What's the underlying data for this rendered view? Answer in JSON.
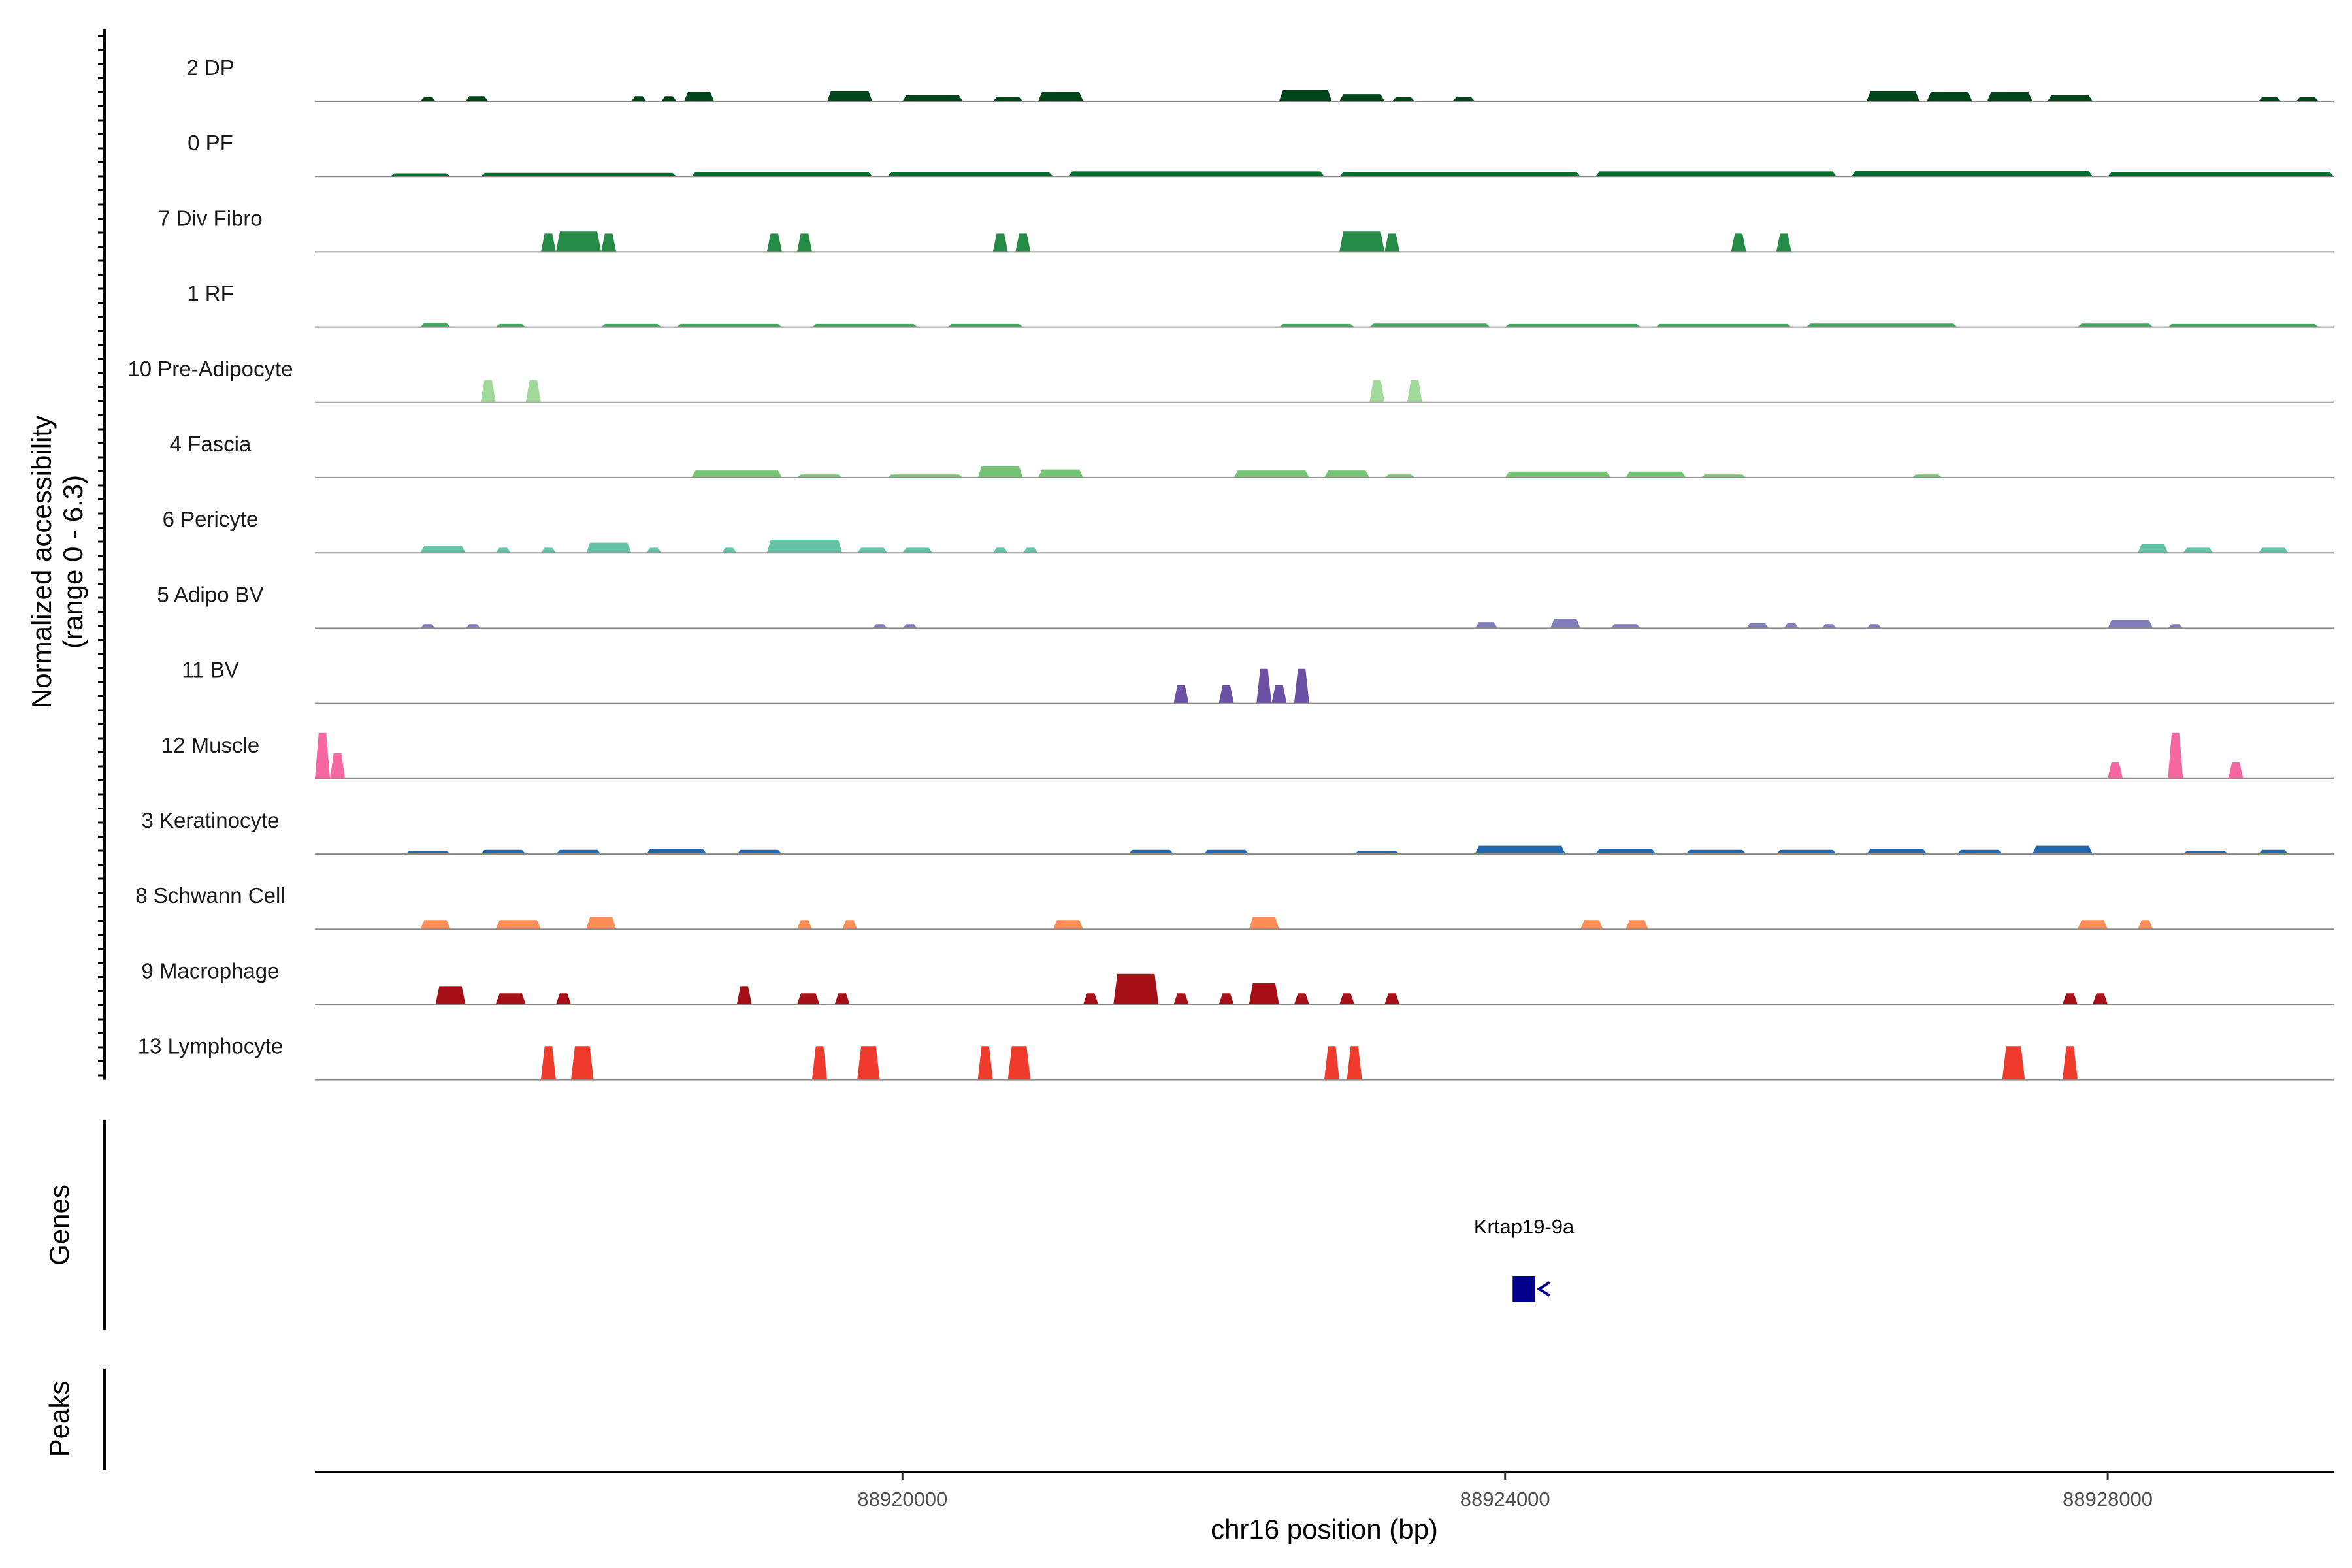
{
  "chart_data": {
    "type": "area",
    "ylabel": "Normalized accessibility\n(range 0 - 6.3)",
    "xlabel": "chr16 position (bp)",
    "xlim": [
      88916100,
      88929500
    ],
    "ylim": [
      0,
      6.3
    ],
    "x_ticks": [
      {
        "value": 88920000,
        "label": "88920000"
      },
      {
        "value": 88924000,
        "label": "88924000"
      },
      {
        "value": 88928000,
        "label": "88928000"
      }
    ],
    "tracks": [
      {
        "name": "2 DP",
        "color": "#00441b",
        "peaks": [
          [
            88916800,
            88916900,
            0.4
          ],
          [
            88917100,
            88917250,
            0.5
          ],
          [
            88918200,
            88918300,
            0.5
          ],
          [
            88918400,
            88918500,
            0.5
          ],
          [
            88918550,
            88918750,
            0.9
          ],
          [
            88919500,
            88919800,
            1.0
          ],
          [
            88920000,
            88920400,
            0.6
          ],
          [
            88920600,
            88920800,
            0.4
          ],
          [
            88920900,
            88921200,
            0.9
          ],
          [
            88922500,
            88922850,
            1.1
          ],
          [
            88922900,
            88923200,
            0.7
          ],
          [
            88923250,
            88923400,
            0.4
          ],
          [
            88923650,
            88923800,
            0.4
          ],
          [
            88926400,
            88926750,
            1.0
          ],
          [
            88926800,
            88927100,
            0.9
          ],
          [
            88927200,
            88927500,
            0.9
          ],
          [
            88927600,
            88927900,
            0.6
          ],
          [
            88929000,
            88929150,
            0.4
          ],
          [
            88929250,
            88929400,
            0.4
          ]
        ]
      },
      {
        "name": "0 PF",
        "color": "#006d2c",
        "peaks": [
          [
            88916600,
            88917000,
            0.3
          ],
          [
            88917200,
            88918500,
            0.35
          ],
          [
            88918600,
            88919800,
            0.45
          ],
          [
            88919900,
            88921000,
            0.4
          ],
          [
            88921100,
            88922800,
            0.5
          ],
          [
            88922900,
            88924500,
            0.45
          ],
          [
            88924600,
            88926200,
            0.5
          ],
          [
            88926300,
            88927900,
            0.55
          ],
          [
            88928000,
            88929500,
            0.45
          ]
        ]
      },
      {
        "name": "7 Div Fibro",
        "color": "#238b45",
        "peaks": [
          [
            88917600,
            88917700,
            1.8
          ],
          [
            88917700,
            88918000,
            2.0
          ],
          [
            88918000,
            88918100,
            1.8
          ],
          [
            88919100,
            88919200,
            1.8
          ],
          [
            88919300,
            88919400,
            1.8
          ],
          [
            88920600,
            88920700,
            1.8
          ],
          [
            88920750,
            88920850,
            1.8
          ],
          [
            88922900,
            88923200,
            2.0
          ],
          [
            88923200,
            88923300,
            1.8
          ],
          [
            88925500,
            88925600,
            1.8
          ],
          [
            88925800,
            88925900,
            1.8
          ]
        ]
      },
      {
        "name": "1 RF",
        "color": "#41ab5d",
        "peaks": [
          [
            88916800,
            88917000,
            0.4
          ],
          [
            88917300,
            88917500,
            0.3
          ],
          [
            88918000,
            88918400,
            0.3
          ],
          [
            88918500,
            88919200,
            0.3
          ],
          [
            88919400,
            88920100,
            0.3
          ],
          [
            88920300,
            88920800,
            0.3
          ],
          [
            88922500,
            88923000,
            0.3
          ],
          [
            88923100,
            88923900,
            0.35
          ],
          [
            88924000,
            88924900,
            0.3
          ],
          [
            88925000,
            88925900,
            0.3
          ],
          [
            88926000,
            88927000,
            0.35
          ],
          [
            88927800,
            88928300,
            0.35
          ],
          [
            88928400,
            88929400,
            0.3
          ]
        ]
      },
      {
        "name": "10 Pre-Adipocyte",
        "color": "#a1d99b",
        "peaks": [
          [
            88917200,
            88917300,
            2.2
          ],
          [
            88917500,
            88917600,
            2.2
          ],
          [
            88923100,
            88923200,
            2.2
          ],
          [
            88923350,
            88923450,
            2.2
          ]
        ]
      },
      {
        "name": "4 Fascia",
        "color": "#74c476",
        "peaks": [
          [
            88918600,
            88919200,
            0.7
          ],
          [
            88919300,
            88919600,
            0.3
          ],
          [
            88919900,
            88920400,
            0.3
          ],
          [
            88920500,
            88920800,
            1.1
          ],
          [
            88920900,
            88921200,
            0.8
          ],
          [
            88922200,
            88922700,
            0.7
          ],
          [
            88922800,
            88923100,
            0.7
          ],
          [
            88923200,
            88923400,
            0.3
          ],
          [
            88924000,
            88924700,
            0.6
          ],
          [
            88924800,
            88925200,
            0.6
          ],
          [
            88925300,
            88925600,
            0.3
          ],
          [
            88926700,
            88926900,
            0.3
          ]
        ]
      },
      {
        "name": "6 Pericyte",
        "color": "#66c2a4",
        "peaks": [
          [
            88916800,
            88917100,
            0.7
          ],
          [
            88917300,
            88917400,
            0.5
          ],
          [
            88917600,
            88917700,
            0.5
          ],
          [
            88917900,
            88918200,
            1.0
          ],
          [
            88918300,
            88918400,
            0.5
          ],
          [
            88918800,
            88918900,
            0.5
          ],
          [
            88919100,
            88919600,
            1.3
          ],
          [
            88919700,
            88919900,
            0.5
          ],
          [
            88920000,
            88920200,
            0.5
          ],
          [
            88920600,
            88920700,
            0.5
          ],
          [
            88920800,
            88920900,
            0.5
          ],
          [
            88928200,
            88928400,
            0.9
          ],
          [
            88928500,
            88928700,
            0.5
          ],
          [
            88929000,
            88929200,
            0.5
          ]
        ]
      },
      {
        "name": "5 Adipo BV",
        "color": "#807dba",
        "peaks": [
          [
            88916800,
            88916900,
            0.4
          ],
          [
            88917100,
            88917200,
            0.4
          ],
          [
            88919800,
            88919900,
            0.4
          ],
          [
            88920000,
            88920100,
            0.4
          ],
          [
            88923800,
            88923950,
            0.6
          ],
          [
            88924300,
            88924500,
            0.9
          ],
          [
            88924700,
            88924900,
            0.4
          ],
          [
            88925600,
            88925750,
            0.5
          ],
          [
            88925850,
            88925950,
            0.5
          ],
          [
            88926100,
            88926200,
            0.4
          ],
          [
            88926400,
            88926500,
            0.4
          ],
          [
            88928000,
            88928300,
            0.8
          ],
          [
            88928400,
            88928500,
            0.4
          ]
        ]
      },
      {
        "name": "11 BV",
        "color": "#6a51a3",
        "peaks": [
          [
            88921800,
            88921900,
            1.8
          ],
          [
            88922100,
            88922200,
            1.8
          ],
          [
            88922350,
            88922450,
            3.4
          ],
          [
            88922450,
            88922550,
            1.8
          ],
          [
            88922600,
            88922700,
            3.4
          ]
        ]
      },
      {
        "name": "12 Muscle",
        "color": "#f768a1",
        "peaks": [
          [
            88916100,
            88916200,
            4.5
          ],
          [
            88916200,
            88916300,
            2.5
          ],
          [
            88928000,
            88928100,
            1.6
          ],
          [
            88928400,
            88928500,
            4.5
          ],
          [
            88928800,
            88928900,
            1.6
          ]
        ]
      },
      {
        "name": "3 Keratinocyte",
        "color": "#2166ac",
        "peaks": [
          [
            88916700,
            88917000,
            0.3
          ],
          [
            88917200,
            88917500,
            0.4
          ],
          [
            88917700,
            88918000,
            0.4
          ],
          [
            88918300,
            88918700,
            0.5
          ],
          [
            88918900,
            88919200,
            0.4
          ],
          [
            88921500,
            88921800,
            0.4
          ],
          [
            88922000,
            88922300,
            0.4
          ],
          [
            88923000,
            88923300,
            0.3
          ],
          [
            88923800,
            88924400,
            0.8
          ],
          [
            88924600,
            88925000,
            0.5
          ],
          [
            88925200,
            88925600,
            0.4
          ],
          [
            88925800,
            88926200,
            0.4
          ],
          [
            88926400,
            88926800,
            0.5
          ],
          [
            88927000,
            88927300,
            0.4
          ],
          [
            88927500,
            88927900,
            0.8
          ],
          [
            88928500,
            88928800,
            0.3
          ],
          [
            88929000,
            88929200,
            0.4
          ]
        ]
      },
      {
        "name": "8 Schwann Cell",
        "color": "#fc8d59",
        "peaks": [
          [
            88916800,
            88917000,
            0.9
          ],
          [
            88917300,
            88917600,
            0.9
          ],
          [
            88917900,
            88918100,
            1.2
          ],
          [
            88919300,
            88919400,
            0.9
          ],
          [
            88919600,
            88919700,
            0.9
          ],
          [
            88921000,
            88921200,
            0.9
          ],
          [
            88922300,
            88922500,
            1.2
          ],
          [
            88924500,
            88924650,
            0.9
          ],
          [
            88924800,
            88924950,
            0.9
          ],
          [
            88927800,
            88928000,
            0.9
          ],
          [
            88928200,
            88928300,
            0.9
          ]
        ]
      },
      {
        "name": "9 Macrophage",
        "color": "#a50f15",
        "peaks": [
          [
            88916900,
            88917100,
            1.8
          ],
          [
            88917300,
            88917500,
            1.1
          ],
          [
            88917700,
            88917800,
            1.1
          ],
          [
            88918900,
            88919000,
            1.8
          ],
          [
            88919300,
            88919450,
            1.1
          ],
          [
            88919550,
            88919650,
            1.1
          ],
          [
            88921200,
            88921300,
            1.1
          ],
          [
            88921400,
            88921700,
            3.0
          ],
          [
            88921800,
            88921900,
            1.1
          ],
          [
            88922100,
            88922200,
            1.1
          ],
          [
            88922300,
            88922500,
            2.1
          ],
          [
            88922600,
            88922700,
            1.1
          ],
          [
            88922900,
            88923000,
            1.1
          ],
          [
            88923200,
            88923300,
            1.1
          ],
          [
            88927700,
            88927800,
            1.1
          ],
          [
            88927900,
            88928000,
            1.1
          ]
        ]
      },
      {
        "name": "13 Lymphocyte",
        "color": "#ef3b2c",
        "peaks": [
          [
            88917600,
            88917700,
            3.3
          ],
          [
            88917800,
            88917950,
            3.3
          ],
          [
            88919400,
            88919500,
            3.3
          ],
          [
            88919700,
            88919850,
            3.3
          ],
          [
            88920500,
            88920600,
            3.3
          ],
          [
            88920700,
            88920850,
            3.3
          ],
          [
            88922800,
            88922900,
            3.3
          ],
          [
            88922950,
            88923050,
            3.3
          ],
          [
            88927300,
            88927450,
            3.3
          ],
          [
            88927700,
            88927800,
            3.3
          ]
        ]
      }
    ],
    "genes": [
      {
        "name": "Krtap19-9a",
        "start": 88924050,
        "end": 88924200,
        "strand": "-",
        "color": "#00008b"
      }
    ],
    "panel_labels": {
      "genes": "Genes",
      "peaks": "Peaks"
    }
  }
}
